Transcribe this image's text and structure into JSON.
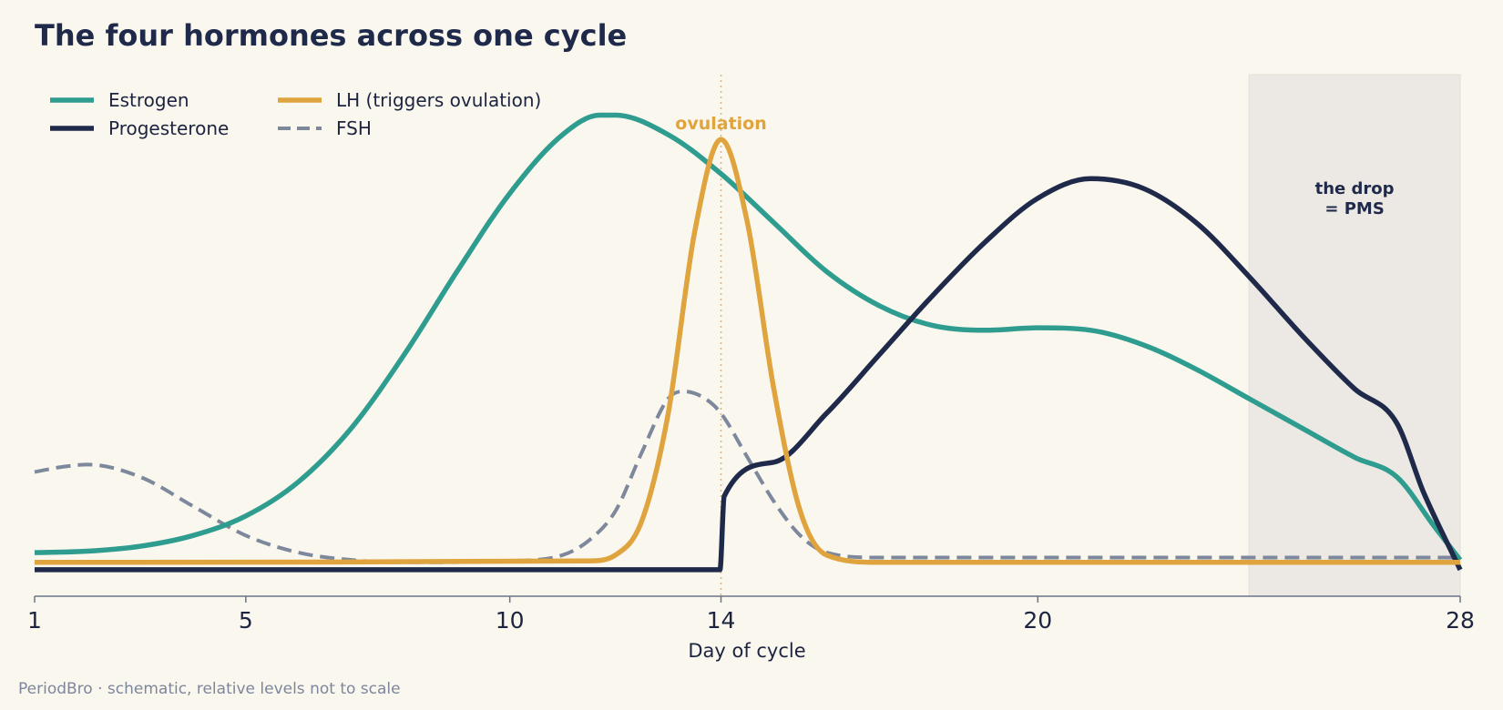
{
  "title": "The four hormones across one cycle",
  "footnote": "PeriodBro  ·  schematic, relative levels not to scale",
  "colors": {
    "background": "#faf7ee",
    "estrogen": "#2e9c8e",
    "progesterone": "#1f2a4a",
    "lh": "#e0a43f",
    "fsh": "#7d889c",
    "pms_band": "#ece9e4",
    "axis": "#6b7388"
  },
  "chart_data": {
    "type": "line",
    "title": "The four hormones across one cycle",
    "xlabel": "Day of cycle",
    "ylabel": "",
    "xlim": [
      1,
      28
    ],
    "ylim": [
      0,
      1
    ],
    "x_ticks": [
      1,
      5,
      10,
      14,
      20,
      28
    ],
    "grid": false,
    "legend_position": "top-left",
    "series": [
      {
        "name": "Estrogen",
        "style": "solid",
        "points": [
          [
            1,
            0.065
          ],
          [
            2,
            0.068
          ],
          [
            3,
            0.078
          ],
          [
            4,
            0.1
          ],
          [
            5,
            0.14
          ],
          [
            6,
            0.21
          ],
          [
            7,
            0.32
          ],
          [
            8,
            0.47
          ],
          [
            9,
            0.64
          ],
          [
            10,
            0.8
          ],
          [
            11,
            0.92
          ],
          [
            11.7,
            0.96
          ],
          [
            12,
            0.96
          ],
          [
            13,
            0.92
          ],
          [
            14,
            0.84
          ],
          [
            15,
            0.74
          ],
          [
            16,
            0.64
          ],
          [
            17,
            0.57
          ],
          [
            18,
            0.53
          ],
          [
            19,
            0.52
          ],
          [
            20,
            0.525
          ],
          [
            21,
            0.52
          ],
          [
            22,
            0.49
          ],
          [
            23,
            0.44
          ],
          [
            24,
            0.38
          ],
          [
            25,
            0.32
          ],
          [
            26,
            0.26
          ],
          [
            26.8,
            0.22
          ],
          [
            27.5,
            0.12
          ],
          [
            28,
            0.05
          ]
        ]
      },
      {
        "name": "Progesterone",
        "style": "solid",
        "points": [
          [
            1,
            0.03
          ],
          [
            13.98,
            0.03
          ],
          [
            14.06,
            0.18
          ],
          [
            15,
            0.25
          ],
          [
            16,
            0.35
          ],
          [
            17,
            0.47
          ],
          [
            18,
            0.59
          ],
          [
            19,
            0.7
          ],
          [
            20,
            0.79
          ],
          [
            21,
            0.83
          ],
          [
            22,
            0.81
          ],
          [
            23,
            0.74
          ],
          [
            24,
            0.63
          ],
          [
            25,
            0.51
          ],
          [
            26,
            0.4
          ],
          [
            26.8,
            0.33
          ],
          [
            27.3,
            0.19
          ],
          [
            28,
            0.03
          ]
        ]
      },
      {
        "name": "LH (triggers ovulation)",
        "style": "solid",
        "points": [
          [
            1,
            0.045
          ],
          [
            11.5,
            0.048
          ],
          [
            12,
            0.06
          ],
          [
            12.5,
            0.13
          ],
          [
            13,
            0.35
          ],
          [
            13.5,
            0.72
          ],
          [
            14,
            0.91
          ],
          [
            14.5,
            0.74
          ],
          [
            15,
            0.4
          ],
          [
            15.5,
            0.15
          ],
          [
            16,
            0.06
          ],
          [
            17,
            0.045
          ],
          [
            28,
            0.045
          ]
        ]
      },
      {
        "name": "FSH",
        "style": "dashed",
        "points": [
          [
            1,
            0.23
          ],
          [
            1.5,
            0.24
          ],
          [
            2,
            0.245
          ],
          [
            3,
            0.22
          ],
          [
            4,
            0.16
          ],
          [
            5,
            0.1
          ],
          [
            6,
            0.065
          ],
          [
            7,
            0.05
          ],
          [
            8,
            0.045
          ],
          [
            10,
            0.048
          ],
          [
            11,
            0.06
          ],
          [
            11.5,
            0.09
          ],
          [
            12,
            0.15
          ],
          [
            12.5,
            0.27
          ],
          [
            13,
            0.38
          ],
          [
            13.3,
            0.395
          ],
          [
            13.7,
            0.38
          ],
          [
            14,
            0.35
          ],
          [
            14.5,
            0.26
          ],
          [
            15,
            0.17
          ],
          [
            15.5,
            0.1
          ],
          [
            16,
            0.065
          ],
          [
            17,
            0.055
          ],
          [
            28,
            0.055
          ]
        ]
      }
    ],
    "annotations": {
      "ovulation_day": 14,
      "ovulation_label": "ovulation",
      "pms_band_days": [
        24,
        28
      ],
      "pms_label_lines": [
        "the drop",
        "= PMS"
      ]
    }
  }
}
